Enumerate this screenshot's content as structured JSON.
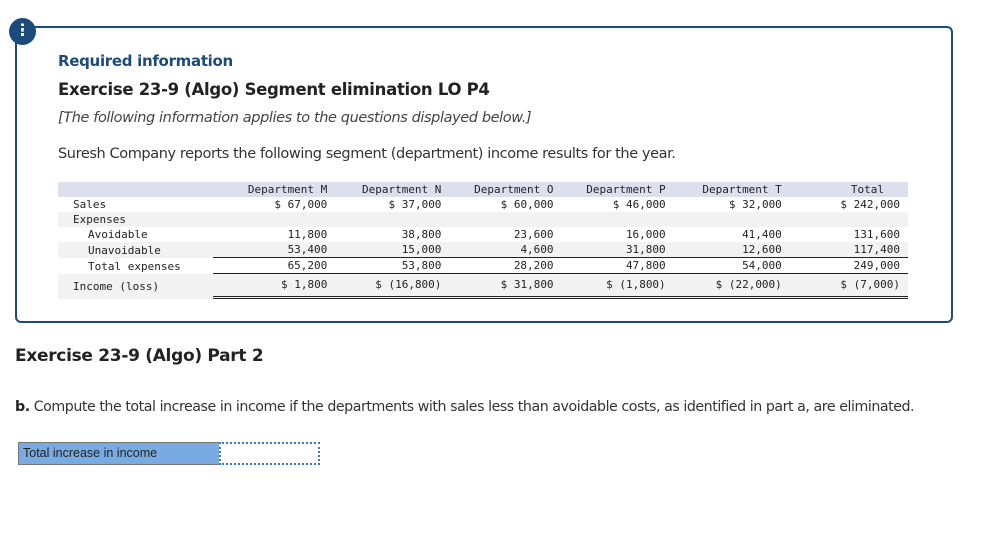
{
  "alert_icon": "!",
  "info": {
    "required_label": "Required information",
    "exercise_title": "Exercise 23-9 (Algo) Segment elimination LO P4",
    "applies_note": "[The following information applies to the questions displayed below.]",
    "intro": "Suresh Company reports the following segment (department) income results for the year."
  },
  "table": {
    "headers": [
      "",
      "Department M",
      "Department N",
      "Department O",
      "Department P",
      "Department T",
      "Total"
    ],
    "rows": [
      {
        "label": "Sales",
        "values": [
          "$ 67,000",
          "$ 37,000",
          "$ 60,000",
          "$ 46,000",
          "$ 32,000",
          "$ 242,000"
        ]
      },
      {
        "label": "Expenses",
        "values": [
          "",
          "",
          "",
          "",
          "",
          ""
        ]
      },
      {
        "label": "Avoidable",
        "values": [
          "11,800",
          "38,800",
          "23,600",
          "16,000",
          "41,400",
          "131,600"
        ]
      },
      {
        "label": "Unavoidable",
        "values": [
          "53,400",
          "15,000",
          "4,600",
          "31,800",
          "12,600",
          "117,400"
        ]
      },
      {
        "label": "Total expenses",
        "values": [
          "65,200",
          "53,800",
          "28,200",
          "47,800",
          "54,000",
          "249,000"
        ]
      },
      {
        "label": "Income (loss)",
        "values": [
          "$ 1,800",
          "$ (16,800)",
          "$ 31,800",
          "$ (1,800)",
          "$ (22,000)",
          "$ (7,000)"
        ]
      }
    ]
  },
  "part2": {
    "title": "Exercise 23-9 (Algo) Part 2",
    "question_prefix": "b.",
    "question_text": " Compute the total increase in income if the departments with sales less than avoidable costs, as identified in part a, are eliminated.",
    "answer_label": "Total increase in income",
    "answer_value": ""
  }
}
